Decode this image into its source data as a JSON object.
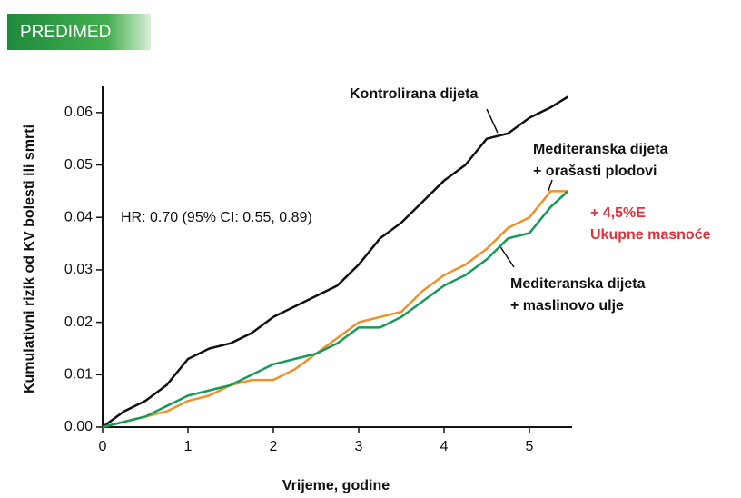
{
  "badge": "PREDIMED",
  "chart_data": {
    "type": "line",
    "x_label": "Vrijeme, godine",
    "y_label": "Kumulativni rizik od KV bolesti ili smrti",
    "x": [
      0,
      0.25,
      0.5,
      0.75,
      1,
      1.25,
      1.5,
      1.75,
      2,
      2.25,
      2.5,
      2.75,
      3,
      3.25,
      3.5,
      3.75,
      4,
      4.25,
      4.5,
      4.75,
      5,
      5.25,
      5.45
    ],
    "series": [
      {
        "color": "#111111",
        "values": [
          0,
          0.003,
          0.005,
          0.008,
          0.013,
          0.015,
          0.016,
          0.018,
          0.021,
          0.023,
          0.025,
          0.027,
          0.031,
          0.036,
          0.039,
          0.043,
          0.047,
          0.05,
          0.055,
          0.056,
          0.059,
          0.061,
          0.063
        ]
      },
      {
        "color": "#f0902a",
        "values": [
          0,
          0.001,
          0.002,
          0.003,
          0.005,
          0.006,
          0.008,
          0.009,
          0.009,
          0.011,
          0.014,
          0.017,
          0.02,
          0.021,
          0.022,
          0.026,
          0.029,
          0.031,
          0.034,
          0.038,
          0.04,
          0.045,
          0.045
        ]
      },
      {
        "color": "#169a5a",
        "values": [
          0,
          0.001,
          0.002,
          0.004,
          0.006,
          0.007,
          0.008,
          0.01,
          0.012,
          0.013,
          0.014,
          0.016,
          0.019,
          0.019,
          0.021,
          0.024,
          0.027,
          0.029,
          0.032,
          0.036,
          0.037,
          0.042,
          0.045
        ]
      }
    ],
    "annotations": [
      {
        "lines": [
          "Kontrolirana dijeta"
        ],
        "color": "#111111"
      },
      {
        "lines": [
          "Mediteranska dijeta",
          "+ orašasti plodovi"
        ],
        "color": "#111111"
      },
      {
        "lines": [
          "+ 4,5%E",
          "Ukupne masnoće"
        ],
        "color": "#e0303a"
      },
      {
        "lines": [
          "Mediteranska dijeta",
          "+ maslinovo ulje"
        ],
        "color": "#111111"
      },
      {
        "lines": [
          "HR: 0.70  (95% CI: 0.55, 0.89)"
        ],
        "color": "#111111"
      }
    ],
    "xlim": [
      0,
      5.5
    ],
    "ylim": [
      0,
      0.065
    ],
    "xticks": [
      0,
      1,
      2,
      3,
      4,
      5
    ],
    "yticks": [
      {
        "value": 0,
        "label": "0.00"
      },
      {
        "value": 0.01,
        "label": "0.01"
      },
      {
        "value": 0.02,
        "label": "0.02"
      },
      {
        "value": 0.03,
        "label": "0.03"
      },
      {
        "value": 0.04,
        "label": "0.04"
      },
      {
        "value": 0.05,
        "label": "0.05"
      },
      {
        "value": 0.06,
        "label": "0.06"
      }
    ]
  }
}
